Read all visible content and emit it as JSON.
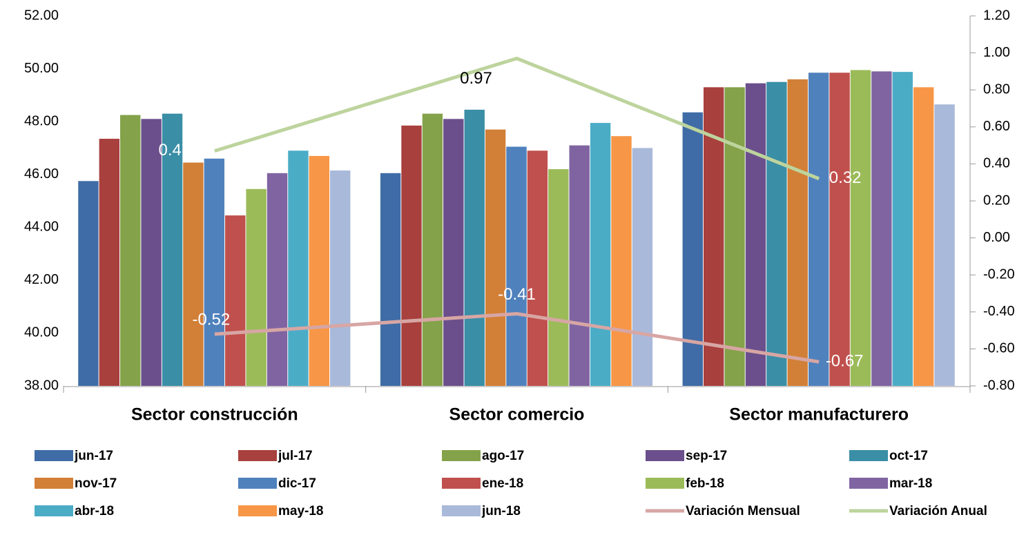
{
  "chart_data": {
    "type": "bar",
    "categories": [
      "Sector construcción",
      "Sector comercio",
      "Sector manufacturero"
    ],
    "ylim": [
      38,
      52
    ],
    "yticks": [
      {
        "value": 38,
        "label": "38.00"
      },
      {
        "value": 40,
        "label": "40.00"
      },
      {
        "value": 42,
        "label": "42.00"
      },
      {
        "value": 44,
        "label": "44.00"
      },
      {
        "value": 46,
        "label": "46.00"
      },
      {
        "value": 48,
        "label": "48.00"
      },
      {
        "value": 50,
        "label": "50.00"
      },
      {
        "value": 52,
        "label": "52.00"
      }
    ],
    "y2lim": [
      -0.8,
      1.2
    ],
    "y2ticks": [
      {
        "value": -0.8,
        "label": "-0.80"
      },
      {
        "value": -0.6,
        "label": "-0.60"
      },
      {
        "value": -0.4,
        "label": "-0.40"
      },
      {
        "value": -0.2,
        "label": "-0.20"
      },
      {
        "value": 0,
        "label": "0.00"
      },
      {
        "value": 0.2,
        "label": "0.20"
      },
      {
        "value": 0.4,
        "label": "0.40"
      },
      {
        "value": 0.6,
        "label": "0.60"
      },
      {
        "value": 0.8,
        "label": "0.80"
      },
      {
        "value": 1.0,
        "label": "1.00"
      },
      {
        "value": 1.2,
        "label": "1.20"
      }
    ],
    "series": [
      {
        "name": "jun-17",
        "color": "#3f6ca6",
        "values": [
          45.75,
          46.05,
          48.35
        ]
      },
      {
        "name": "jul-17",
        "color": "#a8403e",
        "values": [
          47.35,
          47.85,
          49.3
        ]
      },
      {
        "name": "ago-17",
        "color": "#84a24a",
        "values": [
          48.25,
          48.3,
          49.3
        ]
      },
      {
        "name": "sep-17",
        "color": "#6b4f8c",
        "values": [
          48.1,
          48.1,
          49.45
        ]
      },
      {
        "name": "oct-17",
        "color": "#3a8ea6",
        "values": [
          48.3,
          48.45,
          49.5
        ]
      },
      {
        "name": "nov-17",
        "color": "#d27f37",
        "values": [
          46.45,
          47.7,
          49.6
        ]
      },
      {
        "name": "dic-17",
        "color": "#4f81bd",
        "values": [
          46.6,
          47.05,
          49.85
        ]
      },
      {
        "name": "ene-18",
        "color": "#c0504d",
        "values": [
          44.45,
          46.9,
          49.85
        ]
      },
      {
        "name": "feb-18",
        "color": "#9bbb59",
        "values": [
          45.45,
          46.2,
          49.95
        ]
      },
      {
        "name": "mar-18",
        "color": "#8064a2",
        "values": [
          46.05,
          47.1,
          49.9
        ]
      },
      {
        "name": "abr-18",
        "color": "#4bacc6",
        "values": [
          46.9,
          47.95,
          49.88
        ]
      },
      {
        "name": "may-18",
        "color": "#f79646",
        "values": [
          46.7,
          47.45,
          49.3
        ]
      },
      {
        "name": "jun-18",
        "color": "#a9b9da",
        "values": [
          46.15,
          47.0,
          48.65
        ]
      },
      {
        "name": "Variación Mensual",
        "color": "#d7a6a4",
        "type": "line",
        "axis": "y2",
        "values": [
          -0.52,
          -0.41,
          -0.67
        ]
      },
      {
        "name": "Variación Anual",
        "color": "#bdd49d",
        "type": "line",
        "axis": "y2",
        "values": [
          0.47,
          0.97,
          0.32
        ]
      }
    ]
  }
}
